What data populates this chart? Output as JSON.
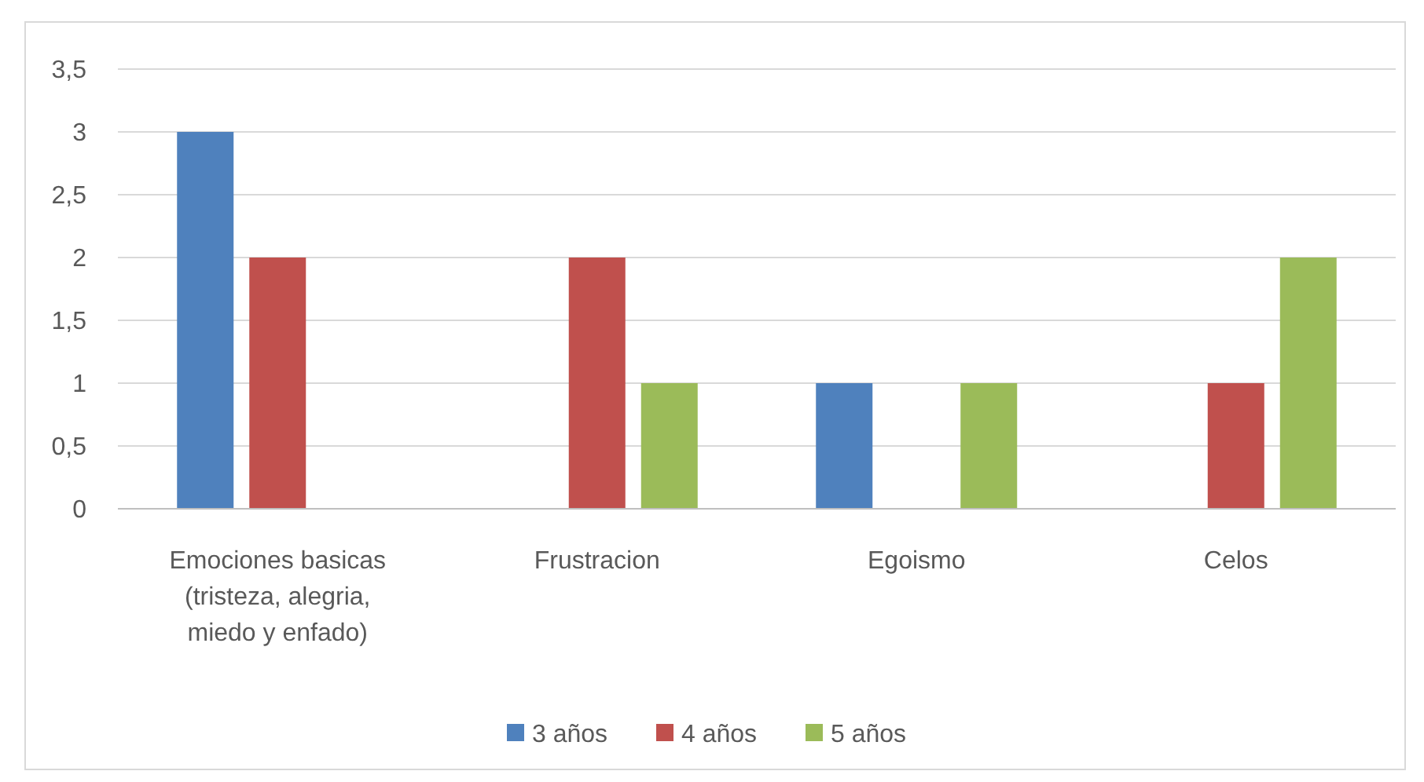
{
  "chart_data": {
    "type": "bar",
    "categories": [
      "Emociones basicas (tristeza, alegria, miedo y enfado)",
      "Frustracion",
      "Egoismo",
      "Celos"
    ],
    "series": [
      {
        "name": "3 años",
        "color": "#4f81bd",
        "values": [
          3,
          0,
          1,
          0
        ]
      },
      {
        "name": "4 años",
        "color": "#c0504d",
        "values": [
          2,
          2,
          0,
          1
        ]
      },
      {
        "name": "5 años",
        "color": "#9bbb59",
        "values": [
          0,
          1,
          1,
          2
        ]
      }
    ],
    "ylim": [
      0,
      3.5
    ],
    "yticks": [
      {
        "value": 0,
        "label": "0"
      },
      {
        "value": 0.5,
        "label": "0,5"
      },
      {
        "value": 1,
        "label": "1"
      },
      {
        "value": 1.5,
        "label": "1,5"
      },
      {
        "value": 2,
        "label": "2"
      },
      {
        "value": 2.5,
        "label": "2,5"
      },
      {
        "value": 3,
        "label": "3"
      },
      {
        "value": 3.5,
        "label": "3,5"
      }
    ],
    "grid": "y",
    "legend": "bottom"
  }
}
